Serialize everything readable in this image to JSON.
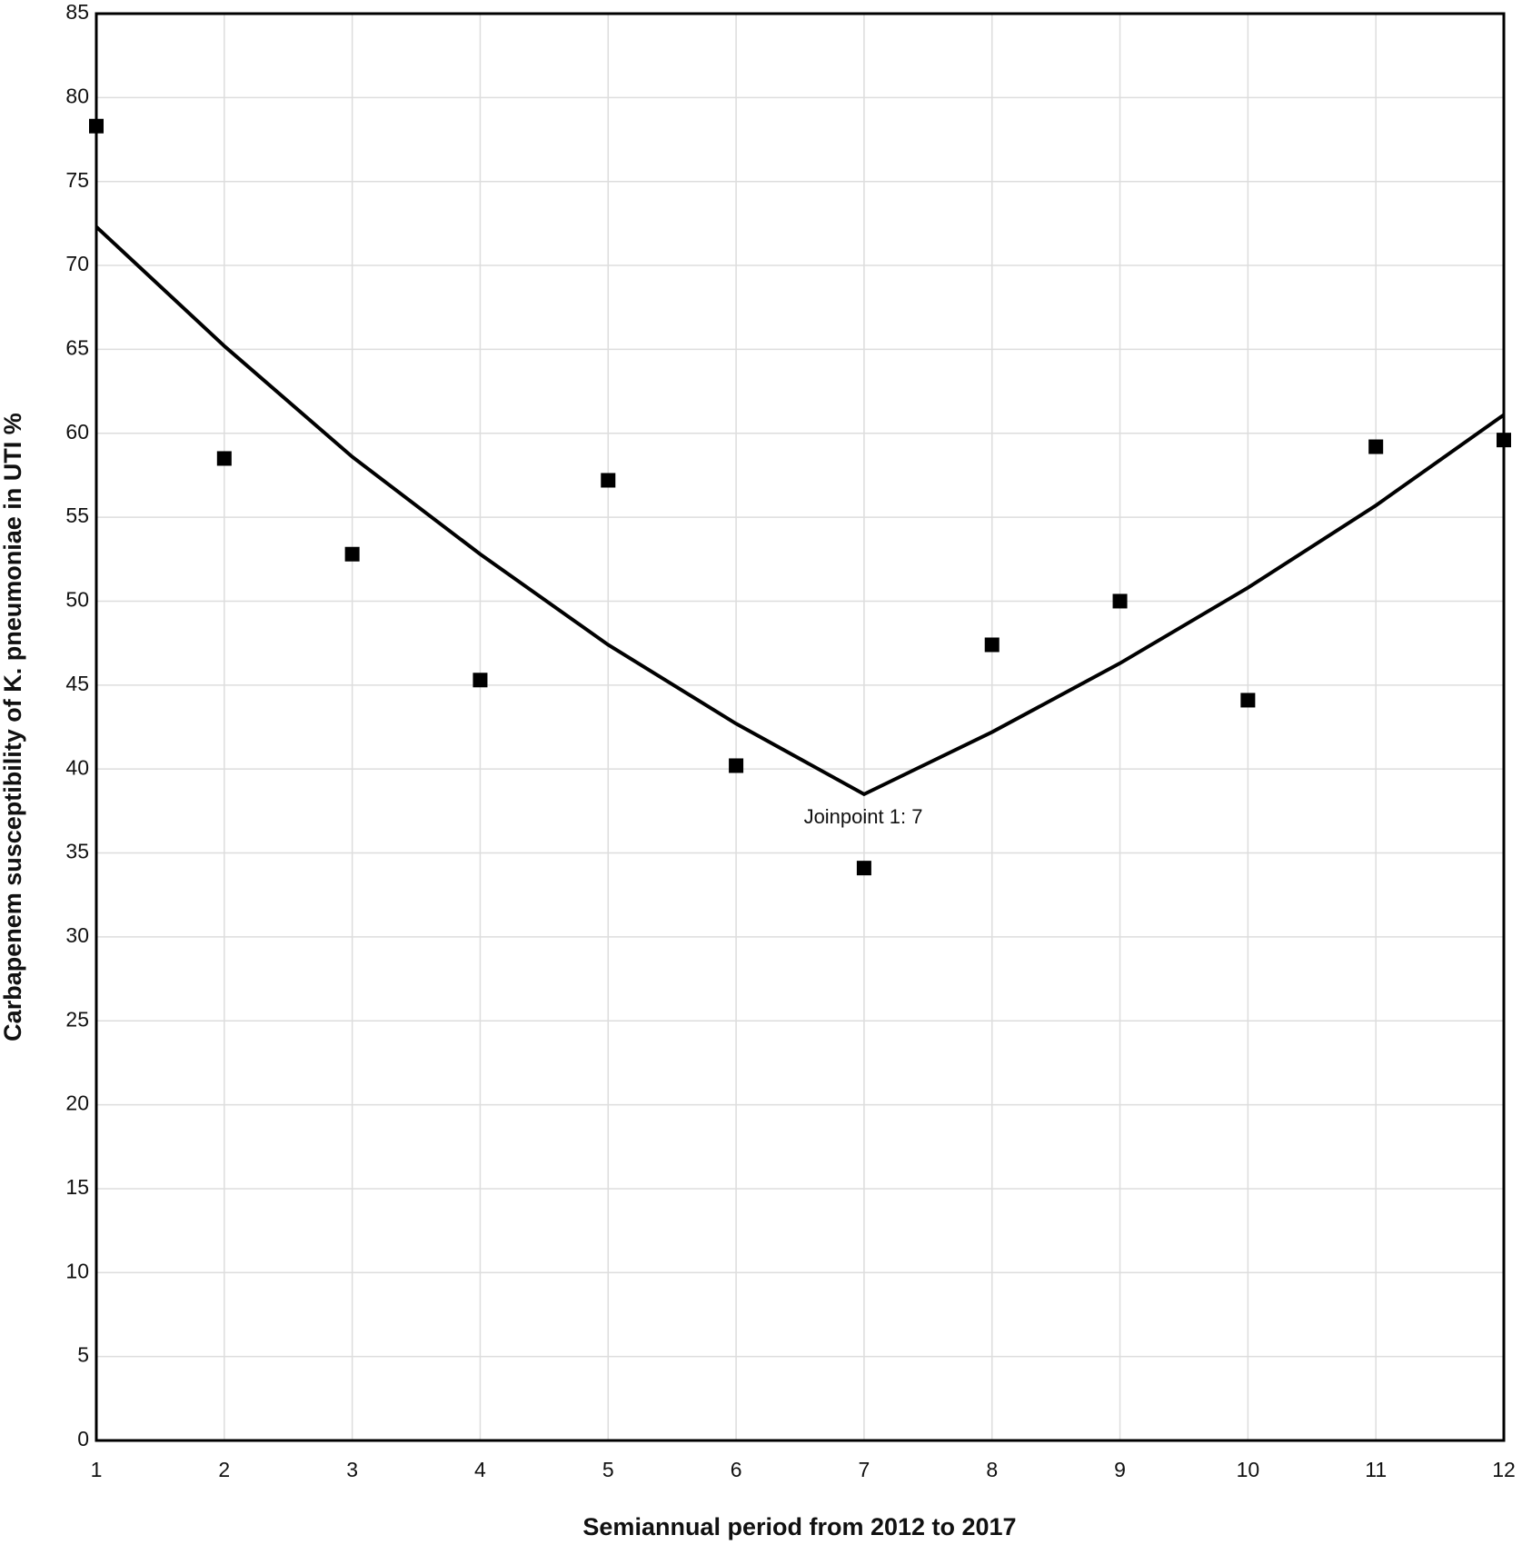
{
  "chart_data": {
    "type": "line",
    "x_label": "Semiannual period from 2012 to 2017",
    "y_label": "Carbapenem susceptibility of K. pneumoniae in UTI %",
    "annotation": "Joinpoint 1:  7",
    "x": [
      1,
      2,
      3,
      4,
      5,
      6,
      7,
      8,
      9,
      10,
      11,
      12
    ],
    "series": [
      {
        "style": "markers",
        "color": "#000000",
        "values": [
          78.3,
          58.5,
          52.8,
          45.3,
          57.2,
          40.2,
          34.1,
          47.4,
          50.0,
          44.1,
          59.2,
          59.6
        ]
      },
      {
        "style": "line",
        "color": "#000000",
        "values": [
          72.3,
          65.2,
          58.6,
          52.8,
          47.4,
          42.7,
          38.5,
          42.2,
          46.3,
          50.8,
          55.7,
          61.1
        ]
      }
    ],
    "xlim": [
      1,
      12
    ],
    "xticks": [
      1,
      2,
      3,
      4,
      5,
      6,
      7,
      8,
      9,
      10,
      11,
      12
    ],
    "ylim": [
      0,
      85
    ],
    "yticks": [
      0,
      5,
      10,
      15,
      20,
      25,
      30,
      35,
      40,
      45,
      50,
      55,
      60,
      65,
      70,
      75,
      80,
      85
    ],
    "grid": true
  }
}
